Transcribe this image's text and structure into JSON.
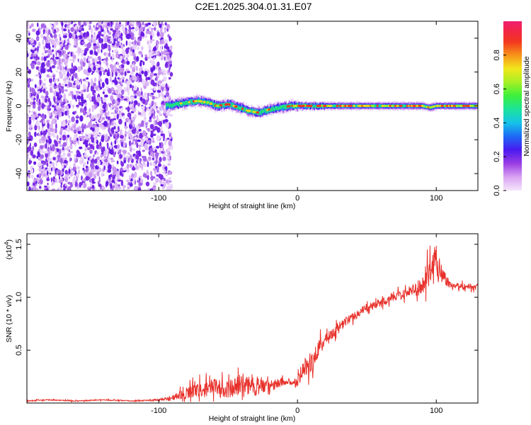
{
  "title": "C2E1.2025.304.01.31.E07",
  "colors": {
    "line": "#e8302a",
    "axis": "#000000",
    "background": "#ffffff"
  },
  "chart_data": [
    {
      "type": "heatmap",
      "title": "C2E1.2025.304.01.31.E07",
      "xlabel": "Height of straight line (km)",
      "ylabel": "Frequency (Hz)",
      "xlim": [
        -195,
        130
      ],
      "ylim": [
        -50,
        50
      ],
      "xticks": [
        -100,
        0,
        100
      ],
      "xtick_labels": [
        "-100",
        "0",
        "100"
      ],
      "yticks": [
        -40,
        -20,
        0,
        20,
        40
      ],
      "ytick_labels": [
        "-40",
        "-20",
        "0",
        "20",
        "40"
      ],
      "noise_region_x": [
        -195,
        -95
      ],
      "ridge": {
        "x": [
          -95,
          -88,
          -80,
          -72,
          -65,
          -58,
          -50,
          -42,
          -35,
          -28,
          -20,
          -12,
          -5,
          0,
          10,
          20,
          40,
          60,
          80,
          90,
          95,
          100,
          130
        ],
        "freq": [
          0,
          1,
          2,
          3,
          2,
          0,
          1,
          -1,
          -3,
          -4,
          -2,
          -1,
          0,
          0,
          0,
          0,
          0,
          0,
          0,
          0,
          -1,
          0,
          0
        ]
      },
      "colorbar": {
        "label": "Normalized spectral amplitude",
        "range": [
          0.0,
          1.0
        ],
        "ticks": [
          0.0,
          0.2,
          0.4,
          0.6,
          0.8
        ],
        "tick_labels": [
          "0.0",
          "0.2",
          "0.4",
          "0.6",
          "0.8"
        ]
      }
    },
    {
      "type": "line",
      "xlabel": "Height of straight line (km)",
      "ylabel": "SNR (10 * v/v)",
      "scale_note": "(x10",
      "scale_exp": "4",
      "xlim": [
        -195,
        130
      ],
      "ylim": [
        0,
        1.6
      ],
      "xticks": [
        -100,
        0,
        100
      ],
      "xtick_labels": [
        "-100",
        "0",
        "100"
      ],
      "yticks": [
        0.5,
        1.0,
        1.5
      ],
      "ytick_labels": [
        "0.5",
        "1.0",
        "1.5"
      ],
      "series": [
        {
          "name": "SNR",
          "x": [
            -195,
            -180,
            -160,
            -140,
            -120,
            -100,
            -90,
            -80,
            -70,
            -60,
            -50,
            -40,
            -30,
            -20,
            -15,
            -10,
            -5,
            0,
            5,
            10,
            15,
            20,
            30,
            40,
            50,
            60,
            70,
            80,
            90,
            95,
            100,
            105,
            110,
            120,
            130
          ],
          "y": [
            0.02,
            0.03,
            0.02,
            0.03,
            0.02,
            0.03,
            0.05,
            0.1,
            0.12,
            0.15,
            0.13,
            0.18,
            0.17,
            0.15,
            0.18,
            0.2,
            0.19,
            0.22,
            0.35,
            0.38,
            0.5,
            0.6,
            0.72,
            0.82,
            0.9,
            0.95,
            1.0,
            1.05,
            1.1,
            1.2,
            1.35,
            1.2,
            1.12,
            1.1,
            1.1
          ],
          "noise": [
            0.005,
            0.005,
            0.005,
            0.005,
            0.005,
            0.008,
            0.02,
            0.06,
            0.07,
            0.08,
            0.08,
            0.1,
            0.1,
            0.05,
            0.05,
            0.03,
            0.03,
            0.04,
            0.08,
            0.12,
            0.1,
            0.05,
            0.05,
            0.04,
            0.04,
            0.04,
            0.04,
            0.05,
            0.08,
            0.15,
            0.2,
            0.08,
            0.03,
            0.03,
            0.03
          ]
        }
      ]
    }
  ]
}
